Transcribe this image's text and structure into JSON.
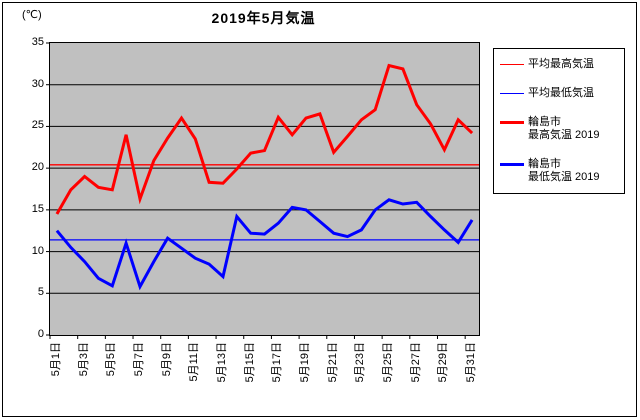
{
  "title": "2019年5月気温",
  "y_axis": {
    "unit": "(℃)",
    "ticks": [
      35,
      30,
      25,
      20,
      15,
      10,
      5,
      0
    ]
  },
  "x_axis": {
    "visible_labels": [
      "5月1日",
      "5月3日",
      "5月5日",
      "5月7日",
      "5月9日",
      "5月11日",
      "5月13日",
      "5月15日",
      "5月17日",
      "5月19日",
      "5月21日",
      "5月23日",
      "5月25日",
      "5月27日",
      "5月29日",
      "5月31日"
    ],
    "label_interval": 2
  },
  "legend": {
    "items": [
      {
        "label": "平均最高気温",
        "label2": "",
        "color": "#ff0000",
        "weight": "thin"
      },
      {
        "label": "平均最低気温",
        "label2": "",
        "color": "#0000ff",
        "weight": "thin"
      },
      {
        "label": "輪島市",
        "label2": "最高気温 2019",
        "color": "#ff0000",
        "weight": "thick"
      },
      {
        "label": "輪島市",
        "label2": "最低気温 2019",
        "color": "#0000ff",
        "weight": "thick"
      }
    ]
  },
  "chart_data": {
    "type": "line",
    "title": "2019年5月気温",
    "ylabel": "(℃)",
    "ylim": [
      0,
      35
    ],
    "grid": true,
    "plot_background": "#c0c0c0",
    "gridline_color": "#000000",
    "legend_position": "right",
    "categories": [
      "5月1日",
      "5月2日",
      "5月3日",
      "5月4日",
      "5月5日",
      "5月6日",
      "5月7日",
      "5月8日",
      "5月9日",
      "5月10日",
      "5月11日",
      "5月12日",
      "5月13日",
      "5月14日",
      "5月15日",
      "5月16日",
      "5月17日",
      "5月18日",
      "5月19日",
      "5月20日",
      "5月21日",
      "5月22日",
      "5月23日",
      "5月24日",
      "5月25日",
      "5月26日",
      "5月27日",
      "5月28日",
      "5月29日",
      "5月30日",
      "5月31日"
    ],
    "series": [
      {
        "name": "平均最高気温",
        "color": "#ff0000",
        "width": "thin",
        "value": 20.4
      },
      {
        "name": "平均最低気温",
        "color": "#0000ff",
        "width": "thin",
        "value": 11.4
      },
      {
        "name": "輪島市 最高気温 2019",
        "color": "#ff0000",
        "width": "thick",
        "values": [
          14.5,
          17.4,
          19.0,
          17.7,
          17.4,
          24.0,
          16.3,
          20.9,
          23.6,
          26.0,
          23.5,
          18.3,
          18.2,
          19.9,
          21.8,
          22.1,
          26.1,
          24.0,
          26.0,
          26.5,
          21.9,
          23.8,
          25.8,
          27.0,
          32.3,
          31.9,
          27.6,
          25.3,
          22.2,
          25.8,
          24.2
        ]
      },
      {
        "name": "輪島市 最低気温 2019",
        "color": "#0000ff",
        "width": "thick",
        "values": [
          12.5,
          10.5,
          8.8,
          6.8,
          5.9,
          11.0,
          5.8,
          8.8,
          11.6,
          10.4,
          9.2,
          8.5,
          7.0,
          14.2,
          12.2,
          12.1,
          13.4,
          15.3,
          15.0,
          13.6,
          12.2,
          11.8,
          12.6,
          15.0,
          16.2,
          15.7,
          15.9,
          14.2,
          12.6,
          11.1,
          13.8
        ]
      }
    ]
  }
}
